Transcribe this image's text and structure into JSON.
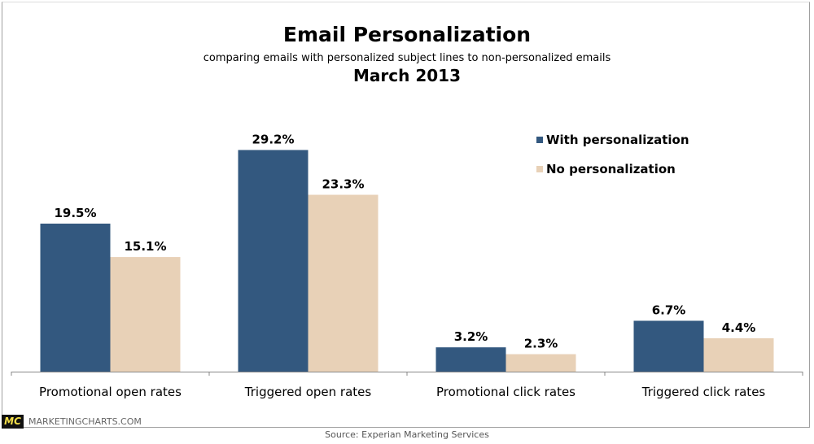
{
  "chart_data": {
    "type": "bar",
    "title": "Email Personalization",
    "subtitle": "comparing emails with personalized subject lines to non-personalized emails",
    "date": "March 2013",
    "categories": [
      "Promotional open rates",
      "Triggered open rates",
      "Promotional click rates",
      "Triggered click rates"
    ],
    "series": [
      {
        "name": "With personalization",
        "color": "#33587f",
        "values": [
          19.5,
          29.2,
          3.2,
          6.7
        ],
        "labels": [
          "19.5%",
          "29.2%",
          "3.2%",
          "6.7%"
        ]
      },
      {
        "name": "No personalization",
        "color": "#e8d1b7",
        "values": [
          15.1,
          23.3,
          2.3,
          4.4
        ],
        "labels": [
          "15.1%",
          "23.3%",
          "2.3%",
          "4.4%"
        ]
      }
    ],
    "ylim": [
      0,
      30
    ],
    "grid": false,
    "legend": "top-right"
  },
  "branding": {
    "logo": "MC",
    "site": "MARKETINGCHARTS.COM"
  },
  "source": "Source: Experian Marketing Services"
}
